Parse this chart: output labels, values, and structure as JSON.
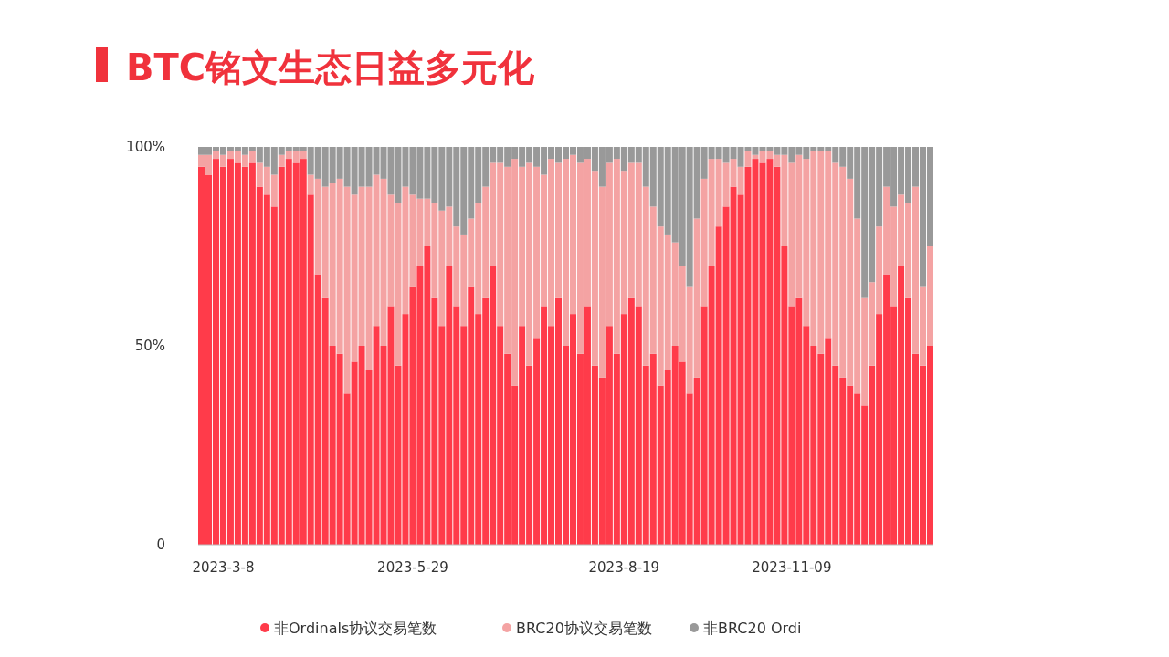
{
  "chart_data": {
    "type": "bar",
    "title": "BTC铭文生态日益多元化",
    "stacked": true,
    "categories": [
      null,
      null,
      null,
      "2023-3-8",
      null,
      null,
      null,
      null,
      null,
      null,
      null,
      null,
      null,
      null,
      null,
      null,
      null,
      null,
      null,
      null,
      null,
      null,
      null,
      null,
      null,
      null,
      null,
      null,
      null,
      "2023-5-29",
      null,
      null,
      null,
      null,
      null,
      null,
      null,
      null,
      null,
      null,
      null,
      null,
      null,
      null,
      null,
      null,
      null,
      null,
      null,
      null,
      null,
      null,
      null,
      null,
      null,
      null,
      null,
      null,
      "2023-8-19",
      null,
      null,
      null,
      null,
      null,
      null,
      null,
      null,
      null,
      null,
      null,
      null,
      null,
      null,
      null,
      null,
      null,
      null,
      null,
      null,
      null,
      null,
      "2023-11-09",
      null,
      null,
      null,
      null,
      null,
      null,
      null,
      null,
      null,
      null,
      null,
      null,
      null,
      null,
      null,
      null,
      null,
      null,
      null
    ],
    "series": [
      {
        "name": "非Ordinals协议交易笔数",
        "color": "#ff3b4a",
        "values": [
          95,
          93,
          97,
          95,
          97,
          96,
          95,
          96,
          90,
          88,
          85,
          95,
          97,
          96,
          97,
          88,
          68,
          62,
          50,
          48,
          38,
          46,
          50,
          44,
          55,
          50,
          60,
          45,
          58,
          65,
          70,
          75,
          62,
          55,
          70,
          60,
          55,
          65,
          58,
          62,
          70,
          55,
          48,
          40,
          55,
          45,
          52,
          60,
          55,
          62,
          50,
          58,
          48,
          60,
          45,
          42,
          55,
          48,
          58,
          62,
          60,
          45,
          48,
          40,
          44,
          50,
          46,
          38,
          42,
          60,
          70,
          80,
          85,
          90,
          88,
          95,
          97,
          96,
          97,
          95,
          75,
          60,
          62,
          55,
          50,
          48,
          52,
          45,
          42,
          40,
          38,
          35,
          45,
          58,
          68,
          60,
          70,
          62,
          48,
          45,
          50
        ]
      },
      {
        "name": "BRC20协议交易笔数",
        "color": "#f4a3a3",
        "values": [
          3,
          5,
          2,
          3,
          2,
          3,
          3,
          3,
          6,
          7,
          8,
          3,
          2,
          3,
          2,
          5,
          24,
          28,
          41,
          44,
          52,
          42,
          40,
          46,
          38,
          42,
          28,
          41,
          32,
          23,
          17,
          12,
          24,
          29,
          15,
          20,
          23,
          17,
          28,
          28,
          26,
          41,
          47,
          57,
          40,
          51,
          43,
          33,
          42,
          34,
          47,
          40,
          48,
          37,
          49,
          48,
          41,
          49,
          36,
          34,
          36,
          45,
          37,
          40,
          34,
          26,
          24,
          27,
          40,
          32,
          27,
          17,
          11,
          7,
          7,
          4,
          1,
          3,
          2,
          3,
          23,
          36,
          36,
          42,
          49,
          51,
          47,
          51,
          53,
          52,
          44,
          27,
          21,
          22,
          22,
          25,
          18,
          24,
          42,
          20,
          25
        ]
      },
      {
        "name": "非BRC20 Ordi",
        "color": "#999999",
        "values": [
          2,
          2,
          1,
          2,
          1,
          1,
          2,
          1,
          4,
          5,
          7,
          2,
          1,
          1,
          1,
          7,
          8,
          10,
          9,
          8,
          10,
          12,
          10,
          10,
          7,
          8,
          12,
          14,
          10,
          12,
          13,
          13,
          14,
          16,
          15,
          20,
          22,
          18,
          14,
          10,
          4,
          4,
          5,
          3,
          5,
          4,
          5,
          7,
          3,
          4,
          3,
          2,
          4,
          3,
          6,
          10,
          4,
          3,
          6,
          4,
          4,
          10,
          15,
          20,
          22,
          24,
          30,
          35,
          18,
          8,
          3,
          3,
          4,
          3,
          5,
          1,
          2,
          1,
          1,
          2,
          2,
          4,
          2,
          3,
          1,
          1,
          1,
          4,
          5,
          8,
          18,
          38,
          34,
          20,
          10,
          15,
          12,
          14,
          10,
          35,
          25
        ]
      }
    ],
    "ylim": [
      0,
      100
    ],
    "yticks": [
      0,
      {
        "value": 50,
        "label": "50%"
      },
      {
        "value": 100,
        "label": "100%"
      }
    ],
    "legend": "bottom"
  }
}
